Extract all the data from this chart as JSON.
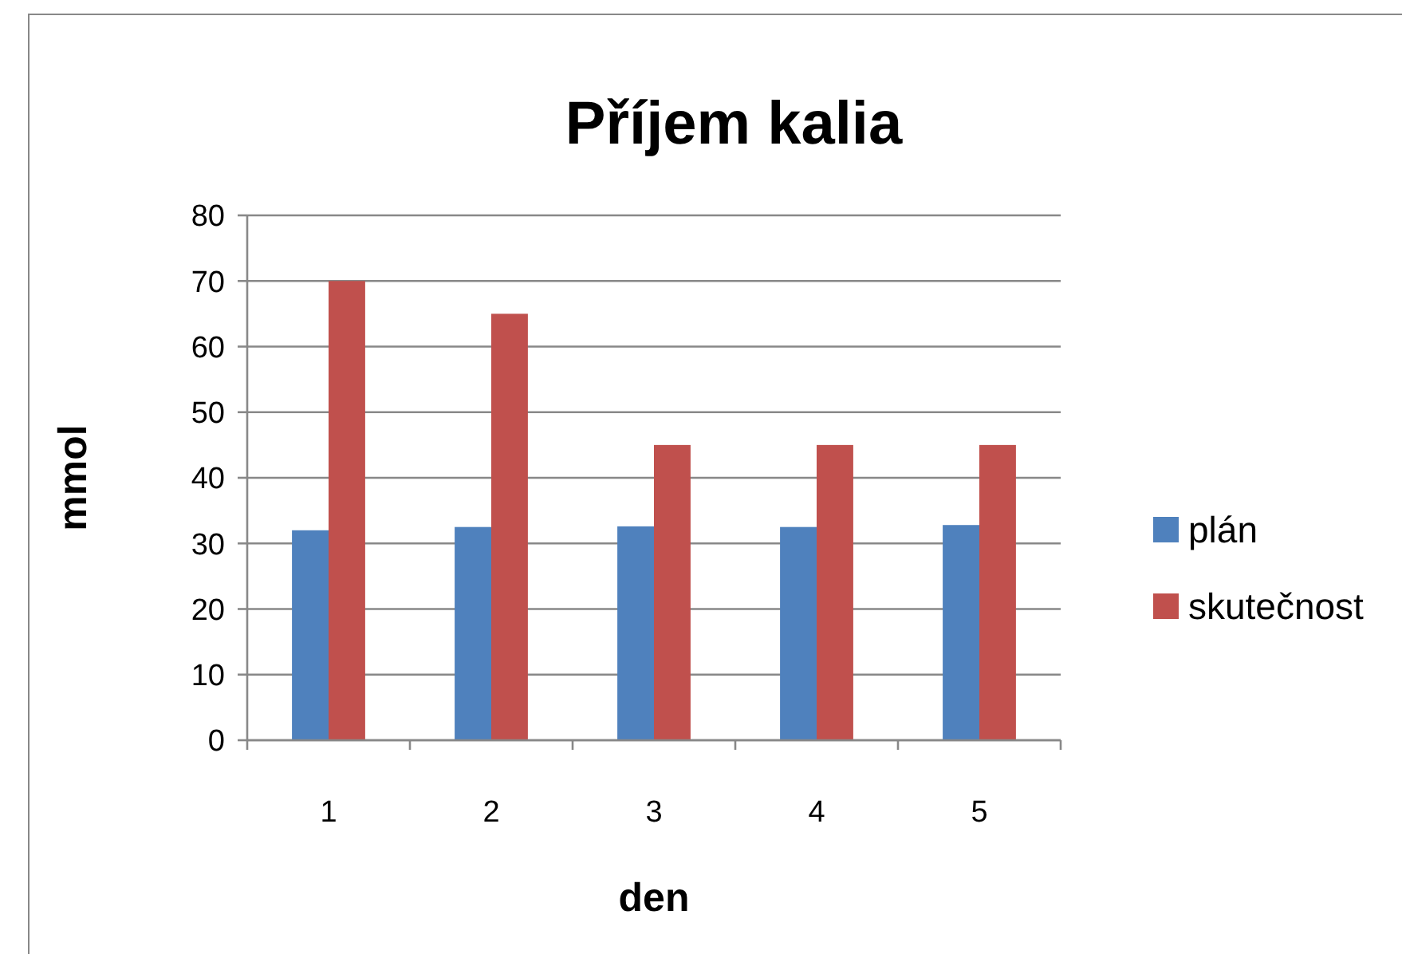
{
  "chart_data": {
    "type": "bar",
    "title": "Příjem kalia",
    "xlabel": "den",
    "ylabel": "mmol",
    "categories": [
      "1",
      "2",
      "3",
      "4",
      "5"
    ],
    "series": [
      {
        "name": "plán",
        "color": "#4f81bd",
        "values": [
          32,
          32.5,
          32.6,
          32.5,
          32.8
        ]
      },
      {
        "name": "skutečnost",
        "color": "#c0504d",
        "values": [
          70,
          65,
          45,
          45,
          45
        ]
      }
    ],
    "ylim": [
      0,
      80
    ],
    "yticks": [
      0,
      10,
      20,
      30,
      40,
      50,
      60,
      70,
      80
    ],
    "grid": "y",
    "legend": "right"
  }
}
